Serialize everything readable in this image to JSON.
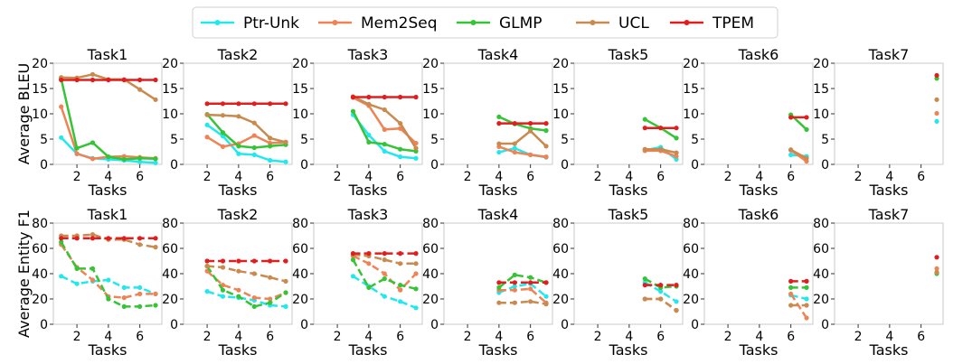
{
  "legend": {
    "placement": "top-center",
    "items": [
      {
        "label": "Ptr-Unk",
        "color": "#22e8ee"
      },
      {
        "label": "Mem2Seq",
        "color": "#ee8456"
      },
      {
        "label": "GLMP",
        "color": "#35c435"
      },
      {
        "label": "UCL",
        "color": "#c98a4f"
      },
      {
        "label": "TPEM",
        "color": "#e01e1e"
      }
    ]
  },
  "chart_data": [
    {
      "type": "line",
      "row_label": "Average BLEU",
      "xlabel": "Tasks",
      "ylim": [
        0,
        20
      ],
      "yticks": [
        "0",
        "5",
        "10",
        "15",
        "20"
      ],
      "xlim": [
        0.5,
        7.4
      ],
      "xticks": [
        "2",
        "4",
        "6"
      ],
      "line_style": "solid",
      "panels": [
        {
          "title": "Task1",
          "x": [
            1,
            2,
            3,
            4,
            5,
            6,
            7
          ],
          "series": [
            {
              "name": "Ptr-Unk",
              "values": [
                5.3,
                2.1,
                1.2,
                1.0,
                0.8,
                0.5,
                0.3
              ]
            },
            {
              "name": "Mem2Seq",
              "values": [
                11.4,
                2.1,
                1.1,
                1.5,
                1.6,
                1.4,
                1.2
              ]
            },
            {
              "name": "GLMP",
              "values": [
                16.9,
                3.2,
                4.3,
                1.5,
                1.0,
                1.2,
                1.1
              ]
            },
            {
              "name": "UCL",
              "values": [
                17.2,
                17.1,
                17.8,
                16.8,
                16.8,
                14.8,
                12.8
              ]
            },
            {
              "name": "TPEM",
              "values": [
                16.7,
                16.7,
                16.7,
                16.7,
                16.7,
                16.7,
                16.7
              ]
            }
          ]
        },
        {
          "title": "Task2",
          "x": [
            2,
            3,
            4,
            5,
            6,
            7
          ],
          "series": [
            {
              "name": "Ptr-Unk",
              "values": [
                7.8,
                5.6,
                2.1,
                1.9,
                0.8,
                0.5
              ]
            },
            {
              "name": "Mem2Seq",
              "values": [
                5.4,
                3.5,
                4.1,
                5.7,
                4.2,
                4.4
              ]
            },
            {
              "name": "GLMP",
              "values": [
                9.9,
                6.3,
                3.6,
                3.3,
                3.6,
                3.9
              ]
            },
            {
              "name": "UCL",
              "values": [
                9.8,
                9.7,
                9.5,
                8.2,
                5.2,
                4.4
              ]
            },
            {
              "name": "TPEM",
              "values": [
                12.0,
                12.0,
                12.0,
                12.0,
                12.0,
                12.0
              ]
            }
          ]
        },
        {
          "title": "Task3",
          "x": [
            3,
            4,
            5,
            6,
            7
          ],
          "series": [
            {
              "name": "Ptr-Unk",
              "values": [
                9.8,
                5.8,
                2.6,
                1.5,
                1.2
              ]
            },
            {
              "name": "Mem2Seq",
              "values": [
                13.2,
                11.6,
                6.9,
                7.1,
                4.2
              ]
            },
            {
              "name": "GLMP",
              "values": [
                10.5,
                4.4,
                4.0,
                3.0,
                2.6
              ]
            },
            {
              "name": "UCL",
              "values": [
                13.4,
                11.9,
                10.8,
                8.1,
                3.2
              ]
            },
            {
              "name": "TPEM",
              "values": [
                13.3,
                13.3,
                13.3,
                13.3,
                13.3
              ]
            }
          ]
        },
        {
          "title": "Task4",
          "x": [
            4,
            5,
            6,
            7
          ],
          "series": [
            {
              "name": "Ptr-Unk",
              "values": [
                2.4,
                3.2,
                1.9,
                1.4
              ]
            },
            {
              "name": "Mem2Seq",
              "values": [
                3.5,
                2.4,
                1.9,
                1.5
              ]
            },
            {
              "name": "GLMP",
              "values": [
                9.4,
                8.0,
                7.1,
                6.7
              ]
            },
            {
              "name": "UCL",
              "values": [
                4.1,
                4.1,
                6.6,
                3.6
              ]
            },
            {
              "name": "TPEM",
              "values": [
                8.1,
                8.1,
                8.1,
                8.1
              ]
            }
          ]
        },
        {
          "title": "Task5",
          "x": [
            5,
            6,
            7
          ],
          "series": [
            {
              "name": "Ptr-Unk",
              "values": [
                2.8,
                3.4,
                1.0
              ]
            },
            {
              "name": "Mem2Seq",
              "values": [
                2.7,
                2.7,
                1.6
              ]
            },
            {
              "name": "GLMP",
              "values": [
                8.9,
                7.2,
                5.2
              ]
            },
            {
              "name": "UCL",
              "values": [
                3.0,
                3.0,
                2.3
              ]
            },
            {
              "name": "TPEM",
              "values": [
                7.2,
                7.2,
                7.2
              ]
            }
          ]
        },
        {
          "title": "Task6",
          "x": [
            6,
            7
          ],
          "series": [
            {
              "name": "Ptr-Unk",
              "values": [
                1.9,
                1.6
              ]
            },
            {
              "name": "Mem2Seq",
              "values": [
                2.8,
                0.6
              ]
            },
            {
              "name": "GLMP",
              "values": [
                9.8,
                6.9
              ]
            },
            {
              "name": "UCL",
              "values": [
                2.9,
                1.2
              ]
            },
            {
              "name": "TPEM",
              "values": [
                9.3,
                9.3
              ]
            }
          ]
        },
        {
          "title": "Task7",
          "x": [
            7
          ],
          "series": [
            {
              "name": "Ptr-Unk",
              "values": [
                8.5
              ]
            },
            {
              "name": "Mem2Seq",
              "values": [
                10.1
              ]
            },
            {
              "name": "GLMP",
              "values": [
                17.0
              ]
            },
            {
              "name": "UCL",
              "values": [
                12.8
              ]
            },
            {
              "name": "TPEM",
              "values": [
                17.6
              ]
            }
          ]
        }
      ]
    },
    {
      "type": "line",
      "row_label": "Average Entity F1",
      "xlabel": "Tasks",
      "ylim": [
        0,
        80
      ],
      "yticks": [
        "0",
        "20",
        "40",
        "60",
        "80"
      ],
      "xlim": [
        0.5,
        7.4
      ],
      "xticks": [
        "2",
        "4",
        "6"
      ],
      "line_style": "dashed",
      "panels": [
        {
          "title": "Task1",
          "x": [
            1,
            2,
            3,
            4,
            5,
            6,
            7
          ],
          "series": [
            {
              "name": "Ptr-Unk",
              "values": [
                38,
                32,
                34,
                35,
                29,
                29,
                24
              ]
            },
            {
              "name": "Mem2Seq",
              "values": [
                63,
                45,
                35,
                22,
                21,
                24,
                24
              ]
            },
            {
              "name": "GLMP",
              "values": [
                65,
                44,
                44,
                20,
                14,
                14,
                15
              ]
            },
            {
              "name": "UCL",
              "values": [
                70,
                70,
                71,
                67,
                67,
                63,
                61
              ]
            },
            {
              "name": "TPEM",
              "values": [
                68,
                68,
                68,
                68,
                68,
                68,
                68
              ]
            }
          ]
        },
        {
          "title": "Task2",
          "x": [
            2,
            3,
            4,
            5,
            6,
            7
          ],
          "series": [
            {
              "name": "Ptr-Unk",
              "values": [
                26,
                22,
                21,
                19,
                15,
                14
              ]
            },
            {
              "name": "Mem2Seq",
              "values": [
                42,
                31,
                27,
                21,
                20,
                25
              ]
            },
            {
              "name": "GLMP",
              "values": [
                46,
                27,
                22,
                14,
                17,
                25
              ]
            },
            {
              "name": "UCL",
              "values": [
                46,
                45,
                42,
                40,
                37,
                34
              ]
            },
            {
              "name": "TPEM",
              "values": [
                50,
                50,
                50,
                50,
                50,
                50
              ]
            }
          ]
        },
        {
          "title": "Task3",
          "x": [
            3,
            4,
            5,
            6,
            7
          ],
          "series": [
            {
              "name": "Ptr-Unk",
              "values": [
                38,
                30,
                22,
                18,
                13
              ]
            },
            {
              "name": "Mem2Seq",
              "values": [
                54,
                48,
                40,
                27,
                40
              ]
            },
            {
              "name": "GLMP",
              "values": [
                51,
                29,
                36,
                31,
                28
              ]
            },
            {
              "name": "UCL",
              "values": [
                55,
                54,
                51,
                48,
                48
              ]
            },
            {
              "name": "TPEM",
              "values": [
                56,
                56,
                56,
                56,
                56
              ]
            }
          ]
        },
        {
          "title": "Task4",
          "x": [
            4,
            5,
            6,
            7
          ],
          "series": [
            {
              "name": "Ptr-Unk",
              "values": [
                25,
                30,
                32,
                22
              ]
            },
            {
              "name": "Mem2Seq",
              "values": [
                27,
                27,
                28,
                17
              ]
            },
            {
              "name": "GLMP",
              "values": [
                29,
                39,
                37,
                33
              ]
            },
            {
              "name": "UCL",
              "values": [
                17,
                17,
                18,
                16
              ]
            },
            {
              "name": "TPEM",
              "values": [
                33,
                33,
                33,
                33
              ]
            }
          ]
        },
        {
          "title": "Task5",
          "x": [
            5,
            6,
            7
          ],
          "series": [
            {
              "name": "Ptr-Unk",
              "values": [
                33,
                26,
                18
              ]
            },
            {
              "name": "Mem2Seq",
              "values": [
                20,
                20,
                11
              ]
            },
            {
              "name": "GLMP",
              "values": [
                36,
                29,
                30
              ]
            },
            {
              "name": "UCL",
              "values": [
                20,
                20,
                11
              ]
            },
            {
              "name": "TPEM",
              "values": [
                31,
                31,
                31
              ]
            }
          ]
        },
        {
          "title": "Task6",
          "x": [
            6,
            7
          ],
          "series": [
            {
              "name": "Ptr-Unk",
              "values": [
                23,
                20
              ]
            },
            {
              "name": "Mem2Seq",
              "values": [
                24,
                5
              ]
            },
            {
              "name": "GLMP",
              "values": [
                29,
                29
              ]
            },
            {
              "name": "UCL",
              "values": [
                15,
                15
              ]
            },
            {
              "name": "TPEM",
              "values": [
                34,
                34
              ]
            }
          ]
        },
        {
          "title": "Task7",
          "x": [
            7
          ],
          "series": [
            {
              "name": "Ptr-Unk",
              "values": [
                41
              ]
            },
            {
              "name": "Mem2Seq",
              "values": [
                44
              ]
            },
            {
              "name": "GLMP",
              "values": [
                40
              ]
            },
            {
              "name": "UCL",
              "values": [
                41
              ]
            },
            {
              "name": "TPEM",
              "values": [
                53
              ]
            }
          ]
        }
      ]
    }
  ]
}
